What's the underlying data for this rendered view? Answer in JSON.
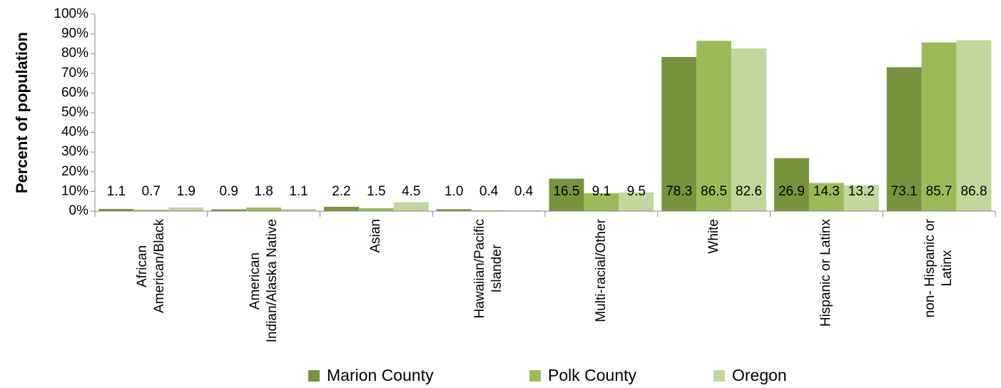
{
  "chart_data": {
    "type": "bar",
    "y_label": "Percent of population",
    "categories": [
      "African\nAmerican/Black",
      "American\nIndian/Alaska Native",
      "Asian",
      "Hawaiian/Pacific\nIslander",
      "Multi-racial/Other",
      "White",
      "Hispanic or Latinx",
      "non- Hispanic or\nLatinx"
    ],
    "series": [
      {
        "name": "Marion County",
        "color": "#77933c",
        "values": [
          1.1,
          0.9,
          2.2,
          1.0,
          16.5,
          78.3,
          26.9,
          73.1
        ],
        "value_labels": [
          "1.1",
          "0.9",
          "2.2",
          "1.0",
          "16.5",
          "78.3",
          "26.9",
          "73.1"
        ]
      },
      {
        "name": "Polk County",
        "color": "#9bbb59",
        "values": [
          0.7,
          1.8,
          1.5,
          0.4,
          9.1,
          86.5,
          14.3,
          85.7
        ],
        "value_labels": [
          "0.7",
          "1.8",
          "1.5",
          "0.4",
          "9.1",
          "86.5",
          "14.3",
          "85.7"
        ]
      },
      {
        "name": "Oregon",
        "color": "#c3d69b",
        "values": [
          1.9,
          1.1,
          4.5,
          0.4,
          9.5,
          82.6,
          13.2,
          86.8
        ],
        "value_labels": [
          "1.9",
          "1.1",
          "4.5",
          "0.4",
          "9.5",
          "82.6",
          "13.2",
          "86.8"
        ]
      }
    ],
    "ylim": [
      0,
      100
    ],
    "yticks": [
      {
        "value": 0,
        "label": "0%"
      },
      {
        "value": 10,
        "label": "10%"
      },
      {
        "value": 20,
        "label": "20%"
      },
      {
        "value": 30,
        "label": "30%"
      },
      {
        "value": 40,
        "label": "40%"
      },
      {
        "value": 50,
        "label": "50%"
      },
      {
        "value": 60,
        "label": "60%"
      },
      {
        "value": 70,
        "label": "70%"
      },
      {
        "value": 80,
        "label": "80%"
      },
      {
        "value": 90,
        "label": "90%"
      },
      {
        "value": 100,
        "label": "100%"
      }
    ],
    "grid": false,
    "legend": "bottom"
  }
}
